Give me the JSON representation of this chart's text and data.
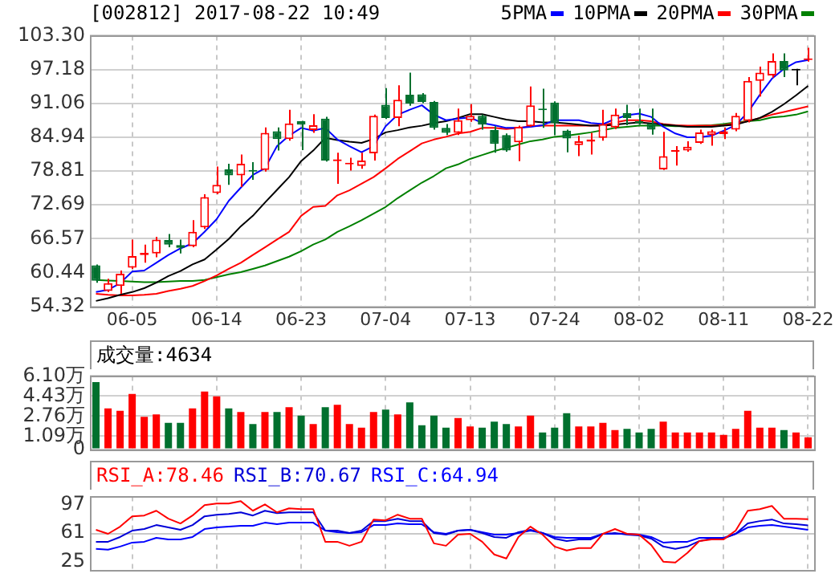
{
  "chart_data": [
    {
      "type": "candlestick",
      "title": "[002812] 2017-08-22 10:49",
      "legend": "top right",
      "grid": true,
      "categories": [
        null,
        null,
        null,
        "06-05",
        null,
        null,
        null,
        null,
        null,
        null,
        "06-14",
        null,
        null,
        null,
        null,
        null,
        null,
        "06-23",
        null,
        null,
        null,
        null,
        null,
        null,
        "07-04",
        null,
        null,
        null,
        null,
        null,
        null,
        "07-13",
        null,
        null,
        null,
        null,
        null,
        null,
        "07-24",
        null,
        null,
        null,
        null,
        null,
        null,
        "08-02",
        null,
        null,
        null,
        null,
        null,
        null,
        "08-11",
        null,
        null,
        null,
        null,
        null,
        null,
        "08-22"
      ],
      "ylim": [
        54.32,
        103.3
      ],
      "yticks": [
        54.32,
        60.44,
        66.57,
        72.69,
        78.81,
        84.94,
        91.06,
        97.18,
        {
          "value": 103.3,
          "label": "103.30"
        }
      ],
      "ohlc": [
        [
          61.75,
          61.9,
          58.6,
          58.94
        ],
        [
          57.1,
          59.3,
          56.9,
          58.5
        ],
        [
          58.0,
          60.8,
          56.6,
          60.2
        ],
        [
          61.3,
          66.4,
          61.1,
          63.4
        ],
        [
          63.6,
          65.5,
          62.2,
          64.0
        ],
        [
          63.9,
          66.9,
          63.2,
          66.4
        ],
        [
          66.3,
          67.4,
          65.0,
          65.5
        ],
        [
          65.4,
          66.4,
          63.9,
          64.9
        ],
        [
          65.2,
          69.9,
          65.0,
          67.8
        ],
        [
          68.6,
          74.6,
          68.3,
          74.1
        ],
        [
          74.8,
          79.6,
          74.6,
          76.3
        ],
        [
          79.1,
          80.1,
          76.3,
          78.0
        ],
        [
          78.0,
          81.8,
          75.9,
          80.1
        ],
        [
          78.9,
          80.4,
          77.2,
          78.7
        ],
        [
          79.0,
          86.7,
          78.7,
          85.7
        ],
        [
          86.0,
          86.7,
          82.5,
          84.6
        ],
        [
          84.6,
          89.9,
          84.3,
          87.4
        ],
        [
          87.8,
          87.9,
          82.6,
          87.2
        ],
        [
          86.2,
          89.1,
          85.7,
          87.1
        ],
        [
          88.3,
          88.6,
          80.5,
          80.7
        ],
        [
          80.6,
          82.1,
          76.5,
          80.9
        ],
        [
          80.0,
          81.2,
          78.9,
          80.2
        ],
        [
          79.7,
          82.1,
          79.2,
          80.7
        ],
        [
          82.0,
          89.0,
          80.7,
          88.8
        ],
        [
          90.8,
          93.8,
          88.2,
          88.4
        ],
        [
          88.4,
          94.3,
          86.9,
          91.7
        ],
        [
          92.6,
          96.6,
          90.6,
          91.0
        ],
        [
          92.7,
          92.9,
          91.1,
          91.3
        ],
        [
          91.3,
          91.5,
          86.3,
          86.6
        ],
        [
          86.6,
          87.3,
          85.3,
          85.7
        ],
        [
          85.7,
          90.1,
          85.3,
          88.0
        ],
        [
          88.0,
          90.9,
          87.7,
          88.8
        ],
        [
          88.8,
          89.0,
          86.3,
          87.2
        ],
        [
          86.2,
          86.9,
          82.1,
          83.7
        ],
        [
          85.3,
          85.6,
          82.3,
          82.5
        ],
        [
          84.0,
          87.0,
          80.6,
          86.8
        ],
        [
          86.9,
          94.1,
          86.8,
          90.7
        ],
        [
          90.1,
          93.7,
          86.6,
          89.8
        ],
        [
          91.2,
          91.4,
          85.3,
          87.5
        ],
        [
          86.1,
          86.3,
          82.2,
          84.7
        ],
        [
          83.5,
          85.2,
          81.5,
          84.2
        ],
        [
          84.1,
          85.7,
          81.8,
          84.5
        ],
        [
          84.8,
          89.9,
          84.3,
          87.3
        ],
        [
          86.7,
          90.1,
          86.4,
          89.0
        ],
        [
          89.3,
          90.8,
          87.1,
          88.4
        ],
        [
          87.8,
          90.1,
          87.2,
          87.4
        ],
        [
          87.4,
          90.1,
          85.4,
          86.3
        ],
        [
          79.1,
          85.9,
          79.0,
          81.5
        ],
        [
          82.3,
          83.3,
          79.8,
          82.5
        ],
        [
          82.5,
          84.2,
          82.3,
          83.2
        ],
        [
          83.9,
          86.3,
          83.7,
          85.8
        ],
        [
          85.3,
          86.3,
          83.4,
          86.0
        ],
        [
          85.5,
          86.7,
          84.6,
          86.0
        ],
        [
          86.3,
          89.3,
          86.0,
          88.8
        ],
        [
          87.9,
          95.8,
          87.6,
          95.1
        ],
        [
          95.1,
          97.7,
          92.3,
          96.6
        ],
        [
          96.1,
          100.1,
          95.7,
          98.7
        ],
        [
          98.7,
          100.1,
          95.8,
          97.0
        ],
        [
          97.0,
          97.3,
          94.3,
          97.0
        ],
        [
          98.9,
          101.1,
          98.6,
          99.2
        ]
      ],
      "colors": [
        "#00702e",
        "#ff0000",
        "#ff0000",
        "#ff0000",
        "#ff0000",
        "#ff0000",
        "#00702e",
        "#00702e",
        "#ff0000",
        "#ff0000",
        "#ff0000",
        "#00702e",
        "#ff0000",
        "#00702e",
        "#ff0000",
        "#00702e",
        "#ff0000",
        "#00702e",
        "#ff0000",
        "#00702e",
        "#ff0000",
        "#ff0000",
        "#ff0000",
        "#ff0000",
        "#00702e",
        "#ff0000",
        "#00702e",
        "#00702e",
        "#00702e",
        "#00702e",
        "#ff0000",
        "#ff0000",
        "#00702e",
        "#00702e",
        "#00702e",
        "#ff0000",
        "#ff0000",
        "#00702e",
        "#00702e",
        "#00702e",
        "#ff0000",
        "#ff0000",
        "#ff0000",
        "#ff0000",
        "#00702e",
        "#00702e",
        "#00702e",
        "#ff0000",
        "#ff0000",
        "#ff0000",
        "#ff0000",
        "#ff0000",
        "#ff0000",
        "#ff0000",
        "#ff0000",
        "#ff0000",
        "#ff0000",
        "#00702e",
        "#000000",
        "#ff0000"
      ],
      "series": [
        {
          "name": "5PMA",
          "type": "line",
          "color": "#0000ff",
          "values": [
            56.9,
            57.3,
            58.5,
            60.6,
            60.8,
            62.2,
            63.6,
            64.8,
            65.7,
            67.8,
            70.1,
            73.4,
            75.8,
            78.1,
            79.3,
            83.3,
            85.2,
            86.6,
            86.1,
            86.6,
            84.5,
            83.3,
            82.2,
            83.3,
            86.9,
            89.0,
            89.9,
            90.7,
            89.0,
            88.0,
            88.3,
            88.5,
            87.5,
            87.1,
            86.6,
            86.6,
            86.8,
            87.1,
            88.0,
            88.0,
            88.0,
            87.5,
            87.3,
            88.2,
            88.9,
            89.2,
            88.6,
            86.8,
            85.6,
            84.9,
            84.9,
            85.2,
            86.1,
            87.1,
            89.4,
            92.6,
            95.5,
            97.3,
            98.5,
            98.9
          ]
        },
        {
          "name": "10PMA",
          "type": "line",
          "color": "#000000",
          "values": [
            55.3,
            55.8,
            56.4,
            56.9,
            57.6,
            58.6,
            59.8,
            60.7,
            61.9,
            62.8,
            64.6,
            66.5,
            68.8,
            70.7,
            73.1,
            75.4,
            77.7,
            80.6,
            82.5,
            84.8,
            84.4,
            84.1,
            83.9,
            84.6,
            85.8,
            86.2,
            86.7,
            87.0,
            87.5,
            87.8,
            88.4,
            89.1,
            89.1,
            88.6,
            88.1,
            87.8,
            87.8,
            87.6,
            87.6,
            87.4,
            87.2,
            87.0,
            87.0,
            87.2,
            87.4,
            87.6,
            87.4,
            87.2,
            87.0,
            86.8,
            86.8,
            86.8,
            87.0,
            87.2,
            87.8,
            88.4,
            89.5,
            90.9,
            92.5,
            94.2
          ]
        },
        {
          "name": "20PMA",
          "type": "line",
          "color": "#ff0000",
          "values": [
            56.6,
            56.4,
            56.3,
            56.3,
            56.4,
            56.6,
            57.1,
            57.5,
            58.0,
            58.9,
            59.9,
            61.1,
            62.2,
            63.6,
            65.0,
            66.4,
            67.8,
            70.7,
            72.3,
            72.5,
            74.4,
            75.3,
            76.5,
            77.7,
            79.3,
            81.0,
            82.4,
            83.8,
            84.5,
            85.0,
            85.6,
            85.9,
            86.6,
            86.6,
            86.4,
            86.6,
            86.9,
            87.0,
            87.0,
            87.0,
            87.0,
            87.0,
            87.1,
            87.6,
            88.0,
            88.0,
            87.8,
            87.3,
            87.1,
            87.0,
            87.0,
            87.0,
            87.1,
            87.4,
            87.8,
            88.4,
            89.0,
            89.5,
            90.0,
            90.5
          ]
        },
        {
          "name": "30PMA",
          "type": "line",
          "color": "#008000",
          "values": [
            59.1,
            59.0,
            58.9,
            58.8,
            58.7,
            58.7,
            58.8,
            58.9,
            58.9,
            59.1,
            59.6,
            60.1,
            60.5,
            61.1,
            61.7,
            62.5,
            63.3,
            64.3,
            65.5,
            66.4,
            67.8,
            68.8,
            69.9,
            71.1,
            72.3,
            73.9,
            75.3,
            76.7,
            77.9,
            79.3,
            80.0,
            81.0,
            81.7,
            82.4,
            83.0,
            83.6,
            84.2,
            84.5,
            85.0,
            85.2,
            85.5,
            85.8,
            86.2,
            86.6,
            86.8,
            87.0,
            87.0,
            87.0,
            86.9,
            86.9,
            87.0,
            87.1,
            87.3,
            87.6,
            87.8,
            88.0,
            88.5,
            88.7,
            89.0,
            89.6
          ]
        }
      ]
    },
    {
      "type": "bar",
      "title": "成交量:4634",
      "grid": true,
      "tick_labels": "y",
      "categories": [
        null,
        null,
        null,
        null,
        null,
        null,
        null,
        null,
        null,
        null,
        null,
        null,
        null,
        null,
        null,
        null,
        null,
        null,
        null,
        null,
        null,
        null,
        null,
        null,
        null,
        null,
        null,
        null,
        null,
        null,
        null,
        null,
        null,
        null,
        null,
        null,
        null,
        null,
        null,
        null,
        null,
        null,
        null,
        null,
        null,
        null,
        null,
        null,
        null,
        null,
        null,
        null,
        null,
        null,
        null,
        null,
        null,
        null,
        null,
        null
      ],
      "ylim": [
        0,
        6.1
      ],
      "yticks": [
        0,
        {
          "value": 1.09,
          "label": "1.09万"
        },
        {
          "value": 2.76,
          "label": "2.76万"
        },
        {
          "value": 4.43,
          "label": "4.43万"
        },
        {
          "value": 6.1,
          "label": "6.10万"
        }
      ],
      "values": [
        5.6,
        3.4,
        3.2,
        4.6,
        2.7,
        2.9,
        2.2,
        2.2,
        3.4,
        4.8,
        4.4,
        3.4,
        3.1,
        2.1,
        3.1,
        3.1,
        3.5,
        2.8,
        2.1,
        3.5,
        3.7,
        2.1,
        1.8,
        3.1,
        3.3,
        2.9,
        3.9,
        2.0,
        2.8,
        1.8,
        2.6,
        1.9,
        1.8,
        2.3,
        2.1,
        1.9,
        2.8,
        1.4,
        1.8,
        3.0,
        1.9,
        1.9,
        2.2,
        1.6,
        1.7,
        1.4,
        1.7,
        2.3,
        1.4,
        1.4,
        1.4,
        1.4,
        1.2,
        1.7,
        3.2,
        1.8,
        1.8,
        1.6,
        1.4,
        1.0
      ],
      "colors": [
        "#00702e",
        "#ff0000",
        "#ff0000",
        "#ff0000",
        "#ff0000",
        "#ff0000",
        "#00702e",
        "#00702e",
        "#ff0000",
        "#ff0000",
        "#ff0000",
        "#00702e",
        "#ff0000",
        "#00702e",
        "#ff0000",
        "#00702e",
        "#ff0000",
        "#00702e",
        "#ff0000",
        "#00702e",
        "#ff0000",
        "#ff0000",
        "#ff0000",
        "#ff0000",
        "#00702e",
        "#ff0000",
        "#00702e",
        "#00702e",
        "#00702e",
        "#00702e",
        "#ff0000",
        "#ff0000",
        "#00702e",
        "#00702e",
        "#00702e",
        "#ff0000",
        "#ff0000",
        "#00702e",
        "#00702e",
        "#00702e",
        "#ff0000",
        "#ff0000",
        "#ff0000",
        "#ff0000",
        "#00702e",
        "#00702e",
        "#00702e",
        "#ff0000",
        "#ff0000",
        "#ff0000",
        "#ff0000",
        "#ff0000",
        "#ff0000",
        "#ff0000",
        "#ff0000",
        "#ff0000",
        "#ff0000",
        "#00702e",
        "#ff0000",
        "#ff0000"
      ]
    },
    {
      "type": "line",
      "legend": "top left",
      "grid": "x",
      "tick_labels": "y",
      "categories": [
        null,
        null,
        null,
        null,
        null,
        null,
        null,
        null,
        null,
        null,
        null,
        null,
        null,
        null,
        null,
        null,
        null,
        null,
        null,
        null,
        null,
        null,
        null,
        null,
        null,
        null,
        null,
        null,
        null,
        null,
        null,
        null,
        null,
        null,
        null,
        null,
        null,
        null,
        null,
        null,
        null,
        null,
        null,
        null,
        null,
        null,
        null,
        null,
        null,
        null,
        null,
        null,
        null,
        null,
        null,
        null,
        null,
        null,
        null,
        null
      ],
      "ylim": [
        15,
        107
      ],
      "yticks": [
        25,
        61,
        97
      ],
      "ref_lines": [
        {
          "axis": "y",
          "value": 61,
          "color": "#c8c8c8"
        }
      ],
      "series": [
        {
          "name": "RSI_A:78.46",
          "color": "#ff0000",
          "values": [
            65,
            60,
            69,
            82,
            83,
            89,
            79,
            73,
            83,
            96,
            98,
            98,
            101,
            89,
            97,
            87,
            92,
            91,
            91,
            50,
            50,
            45,
            50,
            78,
            77,
            84,
            79,
            79,
            48,
            45,
            59,
            60,
            50,
            34,
            29,
            56,
            69,
            59,
            44,
            39,
            42,
            42,
            60,
            66,
            60,
            59,
            46,
            25,
            24,
            36,
            51,
            53,
            53,
            64,
            89,
            91,
            95,
            79,
            79,
            78.46
          ]
        },
        {
          "name": "RSI_B:70.67",
          "color": "#0000d8",
          "values": [
            50,
            50,
            56,
            64,
            66,
            71,
            68,
            65,
            71,
            82,
            84,
            85,
            87,
            83,
            89,
            86,
            87,
            87,
            87,
            64,
            64,
            61,
            64,
            76,
            76,
            79,
            76,
            76,
            61,
            59,
            64,
            65,
            61,
            56,
            55,
            62,
            65,
            61,
            54,
            51,
            53,
            53,
            60,
            61,
            59,
            58,
            54,
            44,
            41,
            44,
            51,
            54,
            54,
            60,
            73,
            76,
            78,
            73,
            72,
            70.67
          ]
        },
        {
          "name": "RSI_C:64.94",
          "color": "#0000ff",
          "values": [
            41,
            40,
            44,
            49,
            50,
            55,
            53,
            53,
            56,
            66,
            68,
            69,
            70,
            70,
            74,
            72,
            74,
            74,
            74,
            64,
            62,
            61,
            62,
            71,
            71,
            73,
            72,
            72,
            62,
            60,
            64,
            65,
            62,
            59,
            59,
            61,
            64,
            61,
            56,
            55,
            55,
            55,
            60,
            60,
            60,
            59,
            56,
            49,
            50,
            50,
            55,
            55,
            55,
            60,
            68,
            70,
            71,
            69,
            67,
            64.94
          ]
        }
      ]
    }
  ]
}
